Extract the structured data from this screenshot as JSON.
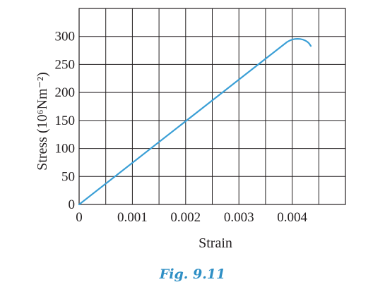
{
  "chart_data": {
    "type": "line",
    "title": "",
    "xlabel": "Strain",
    "ylabel": "Stress (10⁶Nm⁻²)",
    "xlim": [
      0,
      0.005
    ],
    "ylim": [
      0,
      350
    ],
    "x_ticks": [
      0,
      0.001,
      0.002,
      0.003,
      0.004
    ],
    "x_tick_labels": [
      "0",
      "0.001",
      "0.002",
      "0.003",
      "0.004"
    ],
    "y_ticks": [
      0,
      50,
      100,
      150,
      200,
      250,
      300
    ],
    "y_tick_labels": [
      "0",
      "50",
      "100",
      "150",
      "200",
      "250",
      "300"
    ],
    "grid": true,
    "series": [
      {
        "color": "#3a9fd6",
        "x": [
          0,
          0.0039,
          0.004,
          0.0041,
          0.0042,
          0.0043,
          0.00435
        ],
        "y": [
          0,
          290,
          295,
          296,
          295,
          290,
          283
        ]
      }
    ]
  },
  "caption": "Fig. 9.11"
}
